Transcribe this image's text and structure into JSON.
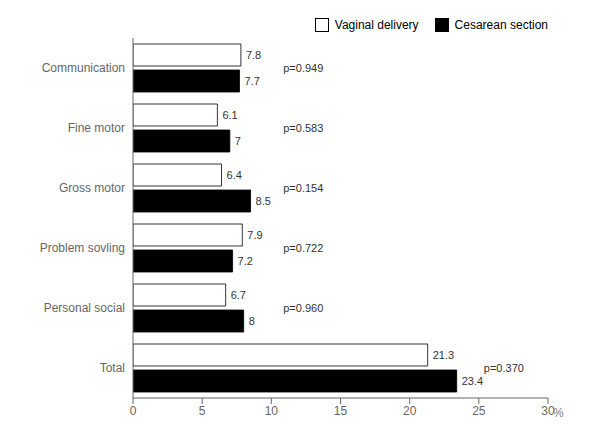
{
  "chart_data": {
    "type": "bar",
    "orientation": "horizontal",
    "categories": [
      "Total",
      "Personal social",
      "Problem sovling",
      "Gross motor",
      "Fine motor",
      "Communication"
    ],
    "series": [
      {
        "name": "Vaginal delivery",
        "color": "#ffffff",
        "values": [
          21.3,
          6.7,
          7.9,
          6.4,
          6.1,
          7.8
        ]
      },
      {
        "name": "Cesarean section",
        "color": "#000000",
        "values": [
          23.4,
          8.0,
          7.2,
          8.5,
          7.0,
          7.7
        ]
      }
    ],
    "xlabel": "%",
    "xlim": [
      0,
      30
    ],
    "xticks": [
      0,
      5,
      10,
      15,
      20,
      25,
      30
    ],
    "data_labels": true,
    "legend": "upper right",
    "grid": false,
    "annotations": [
      {
        "text": "p=0.370",
        "x": 25.0,
        "y": "Total"
      },
      {
        "text": "p=0.960",
        "x": 10.5,
        "y": "Personal social"
      },
      {
        "text": "p=0.722",
        "x": 10.5,
        "y": "Problem sovling"
      },
      {
        "text": "p=0.154",
        "x": 10.5,
        "y": "Gross motor"
      },
      {
        "text": "p=0.583",
        "x": 10.5,
        "y": "Fine motor"
      },
      {
        "text": "p=0.949",
        "x": 10.5,
        "y": "Communication"
      }
    ]
  }
}
